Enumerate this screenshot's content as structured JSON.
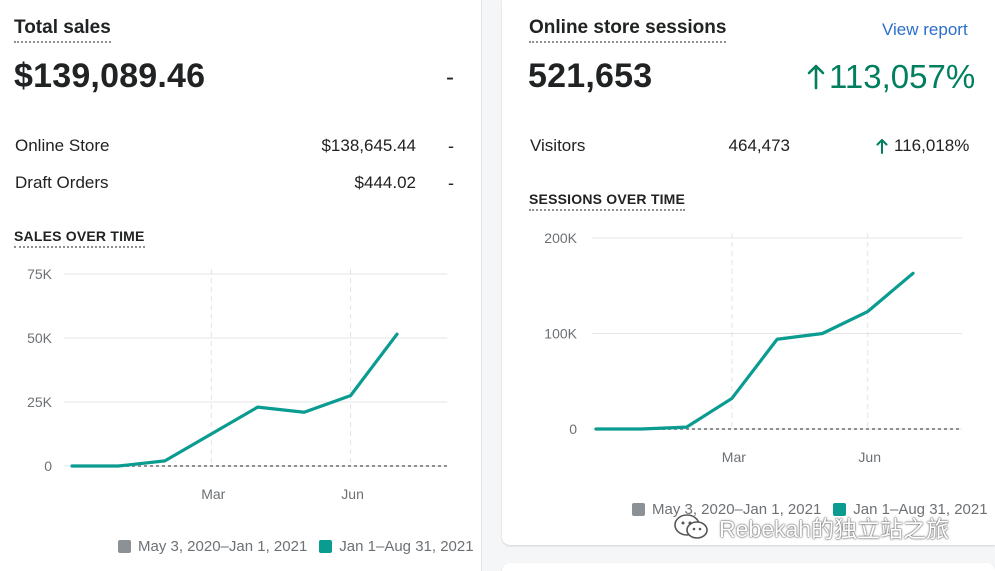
{
  "total_sales": {
    "title": "Total sales",
    "value": "$139,089.46",
    "change": "-",
    "rows": [
      {
        "label": "Online Store",
        "value": "$138,645.44",
        "change": "-"
      },
      {
        "label": "Draft Orders",
        "value": "$444.02",
        "change": "-"
      }
    ],
    "chart_title": "SALES OVER TIME"
  },
  "sessions": {
    "title": "Online store sessions",
    "link": "View report",
    "value": "521,653",
    "change": "113,057%",
    "visitors_label": "Visitors",
    "visitors_value": "464,473",
    "visitors_change": "116,018%",
    "chart_title": "SESSIONS OVER TIME"
  },
  "legend": {
    "previous": "May 3, 2020–Jan 1, 2021",
    "current": "Jan 1–Aug 31, 2021",
    "previous_color": "#8c9196",
    "current_color": "#0a9b91"
  },
  "watermark": "Rebekah的独立站之旅",
  "chart_data": [
    {
      "type": "line",
      "title": "SALES OVER TIME",
      "x": [
        0,
        1,
        2,
        3,
        4,
        5,
        6,
        7
      ],
      "x_ticks": [
        "",
        "",
        "",
        "Mar",
        "",
        "",
        "Jun",
        ""
      ],
      "y_ticks": [
        "0",
        "25K",
        "50K",
        "75K"
      ],
      "ylim": [
        0,
        75000
      ],
      "series": [
        {
          "name": "Jan 1–Aug 31, 2021",
          "values": [
            0,
            0,
            2000,
            12500,
            23000,
            21000,
            27500,
            51500
          ]
        },
        {
          "name": "May 3, 2020–Jan 1, 2021",
          "values": [
            0,
            0,
            0,
            0,
            0,
            0,
            0,
            0
          ]
        }
      ]
    },
    {
      "type": "line",
      "title": "SESSIONS OVER TIME",
      "x": [
        0,
        1,
        2,
        3,
        4,
        5,
        6,
        7
      ],
      "x_ticks": [
        "",
        "",
        "",
        "Mar",
        "",
        "",
        "Jun",
        ""
      ],
      "y_ticks": [
        "0",
        "100K",
        "200K"
      ],
      "ylim": [
        0,
        200000
      ],
      "series": [
        {
          "name": "Jan 1–Aug 31, 2021",
          "values": [
            0,
            0,
            2000,
            32000,
            94000,
            100000,
            123000,
            163000
          ]
        },
        {
          "name": "May 3, 2020–Jan 1, 2021",
          "values": [
            0,
            0,
            0,
            0,
            0,
            0,
            0,
            0
          ]
        }
      ]
    }
  ]
}
